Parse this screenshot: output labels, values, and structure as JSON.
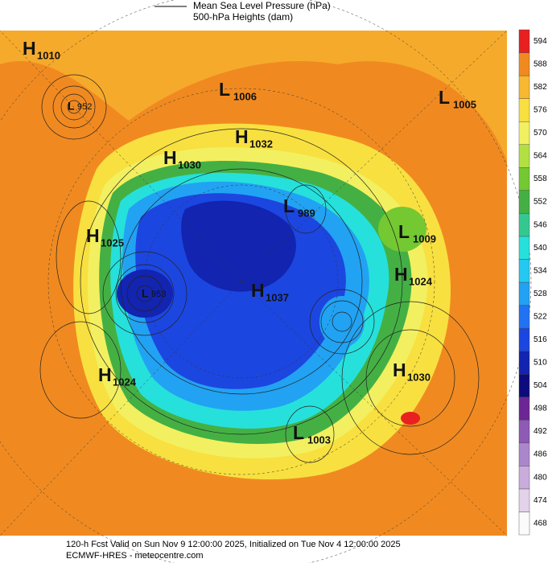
{
  "header": {
    "legend": [
      "Mean Sea Level Pressure (hPa)",
      "500-hPa Heights (dam)"
    ]
  },
  "centers": [
    {
      "letter": "H",
      "value": 1010
    },
    {
      "letter": "L",
      "value": 952
    },
    {
      "letter": "L",
      "value": 1006
    },
    {
      "letter": "L",
      "value": 1005
    },
    {
      "letter": "H",
      "value": 1032
    },
    {
      "letter": "H",
      "value": 1030
    },
    {
      "letter": "L",
      "value": 989
    },
    {
      "letter": "L",
      "value": 1009
    },
    {
      "letter": "H",
      "value": 1025
    },
    {
      "letter": "H",
      "value": 1024
    },
    {
      "letter": "H",
      "value": 1037
    },
    {
      "letter": "L",
      "value": 953
    },
    {
      "letter": "H",
      "value": 1024
    },
    {
      "letter": "H",
      "value": 1030
    },
    {
      "letter": "L",
      "value": 1003
    }
  ],
  "colorbar": {
    "ticks": [
      468,
      474,
      480,
      486,
      492,
      498,
      504,
      510,
      516,
      522,
      528,
      534,
      540,
      546,
      552,
      558,
      564,
      570,
      576,
      582,
      588,
      594
    ],
    "colors": [
      "#fbfbfb",
      "#e2d2ea",
      "#c9acdb",
      "#ac86cb",
      "#8d5ab5",
      "#6c2695",
      "#0c0c7e",
      "#1224b0",
      "#1c46e0",
      "#2272f2",
      "#22a2f2",
      "#24c8f0",
      "#26e0dc",
      "#34c890",
      "#44b044",
      "#74c832",
      "#b2e042",
      "#f2f060",
      "#f8e040",
      "#f8b830",
      "#f08a20",
      "#e82020"
    ]
  },
  "footer": [
    "120-h Fcst Valid on Sun Nov  9 12:00:00 2025, Initialized on Tue Nov  4 12:00:00 2025",
    "ECMWF-HRES - meteocentre.com"
  ]
}
